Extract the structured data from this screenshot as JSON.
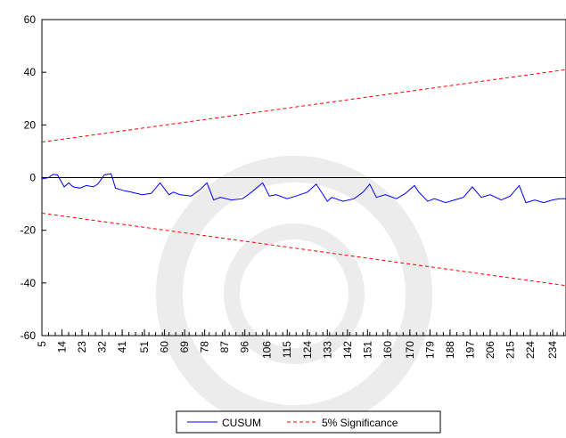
{
  "chart_data": {
    "type": "line",
    "title": "",
    "xlabel": "",
    "ylabel": "",
    "xlim": [
      5,
      240
    ],
    "ylim": [
      -60,
      60
    ],
    "y_ticks": [
      60,
      40,
      20,
      0,
      -20,
      -40,
      -60
    ],
    "y_tick_labels": [
      "60",
      "40",
      "20",
      "0",
      "-20",
      "-40",
      "-60"
    ],
    "x_tick_labels": [
      "5",
      "14",
      "23",
      "32",
      "41",
      "51",
      "60",
      "69",
      "78",
      "87",
      "96",
      "106",
      "115",
      "124",
      "133",
      "142",
      "151",
      "160",
      "170",
      "179",
      "188",
      "197",
      "206",
      "215",
      "224",
      "234"
    ],
    "x_tick_values": [
      5,
      14,
      23,
      32,
      41,
      51,
      60,
      69,
      78,
      87,
      96,
      106,
      115,
      124,
      133,
      142,
      151,
      160,
      170,
      179,
      188,
      197,
      206,
      215,
      224,
      234
    ],
    "zero_line": true,
    "grid": false,
    "legend_position": "bottom-center",
    "series": [
      {
        "name": "CUSUM",
        "color": "#0000ff",
        "style": "solid",
        "x": [
          5,
          8,
          10,
          12,
          15,
          17,
          19,
          22,
          25,
          28,
          30,
          33,
          36,
          38,
          40,
          42,
          45,
          50,
          54,
          58,
          62,
          64,
          67,
          72,
          76,
          79,
          82,
          85,
          90,
          95,
          99,
          104,
          107,
          110,
          115,
          119,
          124,
          128,
          133,
          135,
          140,
          145,
          149,
          152,
          155,
          159,
          164,
          168,
          172,
          174,
          178,
          181,
          186,
          190,
          194,
          198,
          202,
          206,
          211,
          215,
          219,
          222,
          226,
          230,
          234,
          237,
          240
        ],
        "values": [
          -0.5,
          0.0,
          1.2,
          1.0,
          -3.5,
          -2.0,
          -3.5,
          -4.0,
          -3.0,
          -3.5,
          -2.5,
          1.0,
          1.5,
          -4.0,
          -4.5,
          -5.0,
          -5.5,
          -6.5,
          -6.0,
          -2.0,
          -6.5,
          -5.5,
          -6.5,
          -7.0,
          -4.5,
          -2.0,
          -8.5,
          -7.5,
          -8.5,
          -8.0,
          -5.5,
          -2.0,
          -7.0,
          -6.5,
          -8.0,
          -7.0,
          -5.5,
          -2.5,
          -9.0,
          -7.5,
          -9.0,
          -8.0,
          -5.5,
          -2.5,
          -7.5,
          -6.5,
          -8.0,
          -6.0,
          -3.0,
          -5.5,
          -9.0,
          -8.0,
          -9.5,
          -8.5,
          -7.5,
          -3.5,
          -7.5,
          -6.5,
          -8.5,
          -7.0,
          -3.0,
          -9.5,
          -8.5,
          -9.5,
          -8.5,
          -8.0,
          -8.0
        ]
      },
      {
        "name": "5% Significance",
        "color": "#ff0000",
        "style": "dashed",
        "bounds": [
          {
            "x": [
              5,
              240
            ],
            "values": [
              13.5,
              41
            ]
          },
          {
            "x": [
              5,
              240
            ],
            "values": [
              -13.5,
              -41
            ]
          }
        ]
      }
    ],
    "legend": {
      "entries": [
        {
          "label": "CUSUM",
          "color": "#0000ff",
          "style": "solid"
        },
        {
          "label": "5% Significance",
          "color": "#ff0000",
          "style": "dashed"
        }
      ]
    }
  }
}
